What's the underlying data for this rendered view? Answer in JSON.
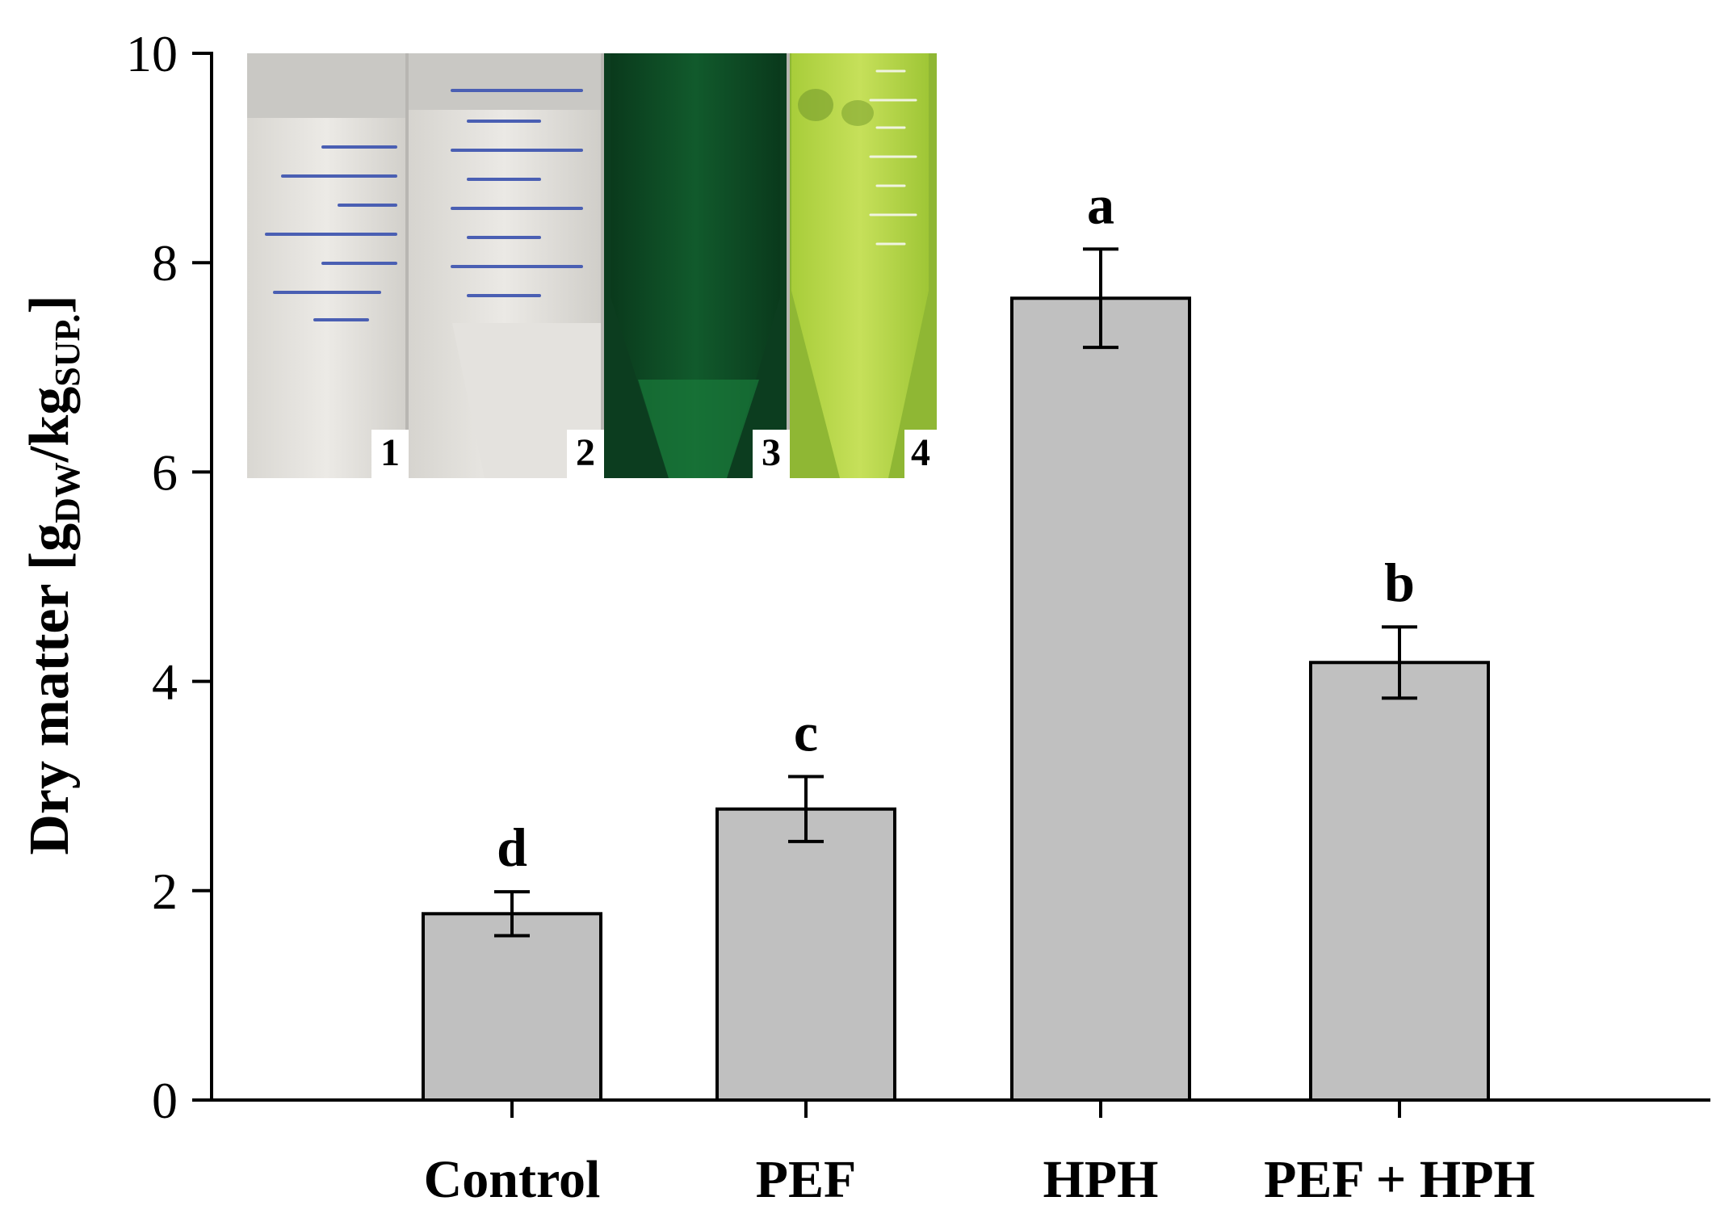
{
  "chart_data": {
    "type": "bar",
    "categories": [
      "Control",
      "PEF",
      "HPH",
      "PEF + HPH"
    ],
    "values": [
      1.78,
      2.78,
      7.66,
      4.18
    ],
    "errors": [
      0.21,
      0.31,
      0.47,
      0.34
    ],
    "significance": [
      "d",
      "c",
      "a",
      "b"
    ],
    "ylabel": {
      "main": "Dry matter [g",
      "sub1": "DW",
      "mid": "/kg",
      "sub2": "SUP.",
      "end": "]"
    },
    "ylim": [
      0,
      10
    ],
    "yticks": [
      "0",
      "2",
      "4",
      "6",
      "8",
      "10"
    ],
    "bar_color": "#c0c0c0",
    "grid": false,
    "inset": {
      "content": "photo of four centrifuge tubes",
      "tube_labels": [
        "1",
        "2",
        "3",
        "4"
      ],
      "tube_colors": [
        "#e6e4e0",
        "#e4e2de",
        "#0e4a25",
        "#b9d84a"
      ]
    }
  }
}
